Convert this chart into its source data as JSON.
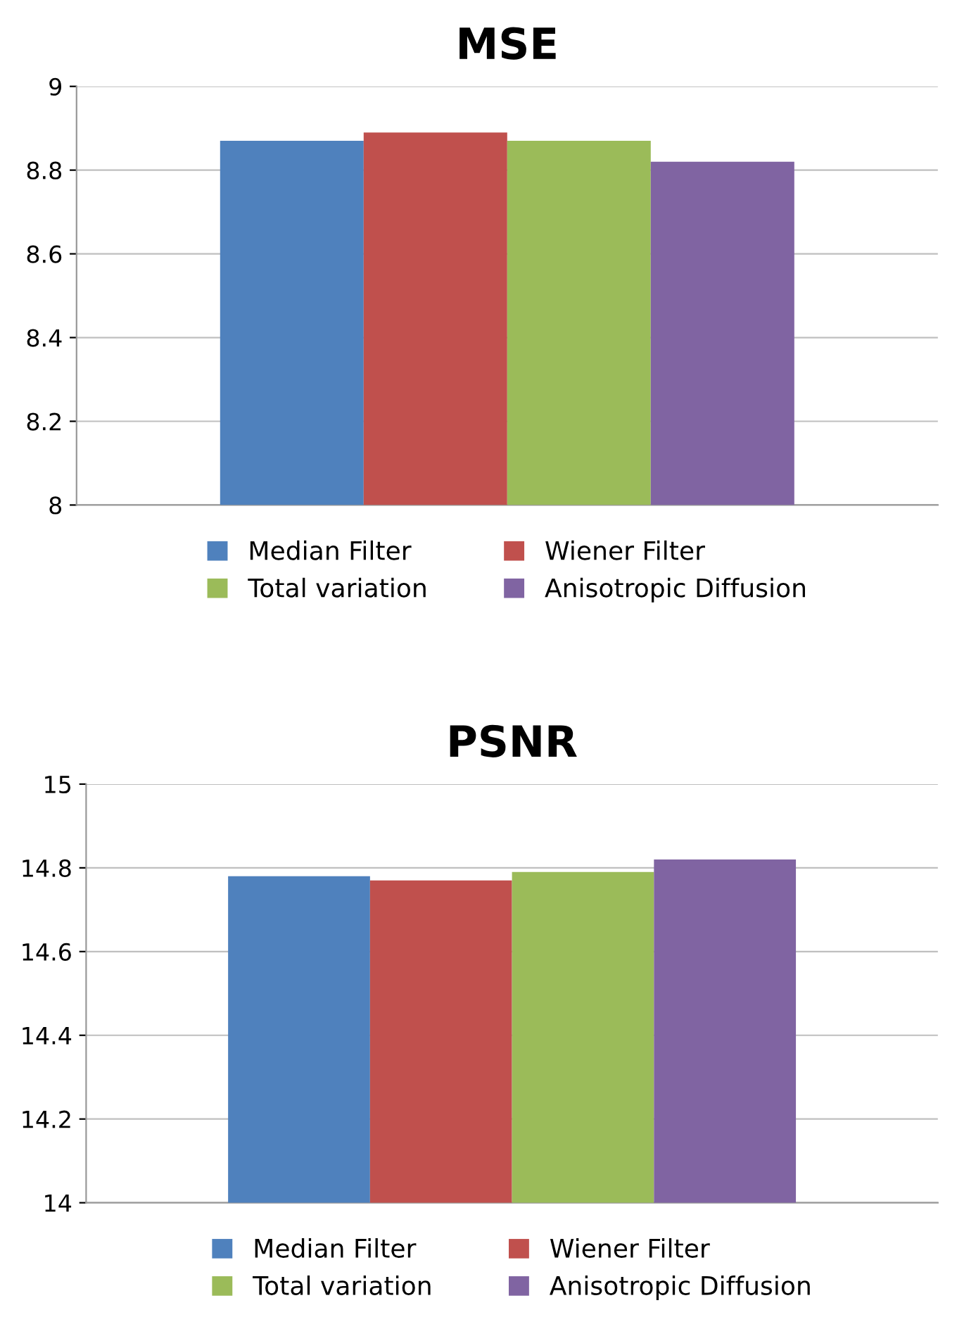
{
  "chart_data": [
    {
      "type": "bar",
      "title": "MSE",
      "categories": [
        null
      ],
      "ylim": [
        8,
        9
      ],
      "yticks": [
        8,
        8.2,
        8.4,
        8.6,
        8.8,
        9
      ],
      "grid": "y",
      "legend": "bottom",
      "series": [
        {
          "name": "Median Filter",
          "color": "#4f81bd",
          "values": [
            8.87
          ]
        },
        {
          "name": "Wiener Filter",
          "color": "#c0504d",
          "values": [
            8.89
          ]
        },
        {
          "name": "Total variation",
          "color": "#9bbb59",
          "values": [
            8.87
          ]
        },
        {
          "name": "Anisotropic Diffusion",
          "color": "#8064a2",
          "values": [
            8.82
          ]
        }
      ]
    },
    {
      "type": "bar",
      "title": "PSNR",
      "categories": [
        null
      ],
      "ylim": [
        14,
        15
      ],
      "yticks": [
        14,
        14.2,
        14.4,
        14.6,
        14.8,
        15
      ],
      "grid": "y",
      "legend": "bottom",
      "series": [
        {
          "name": "Median Filter",
          "color": "#4f81bd",
          "values": [
            14.78
          ]
        },
        {
          "name": "Wiener Filter",
          "color": "#c0504d",
          "values": [
            14.77
          ]
        },
        {
          "name": "Total variation",
          "color": "#9bbb59",
          "values": [
            14.79
          ]
        },
        {
          "name": "Anisotropic Diffusion",
          "color": "#8064a2",
          "values": [
            14.82
          ]
        }
      ]
    }
  ]
}
